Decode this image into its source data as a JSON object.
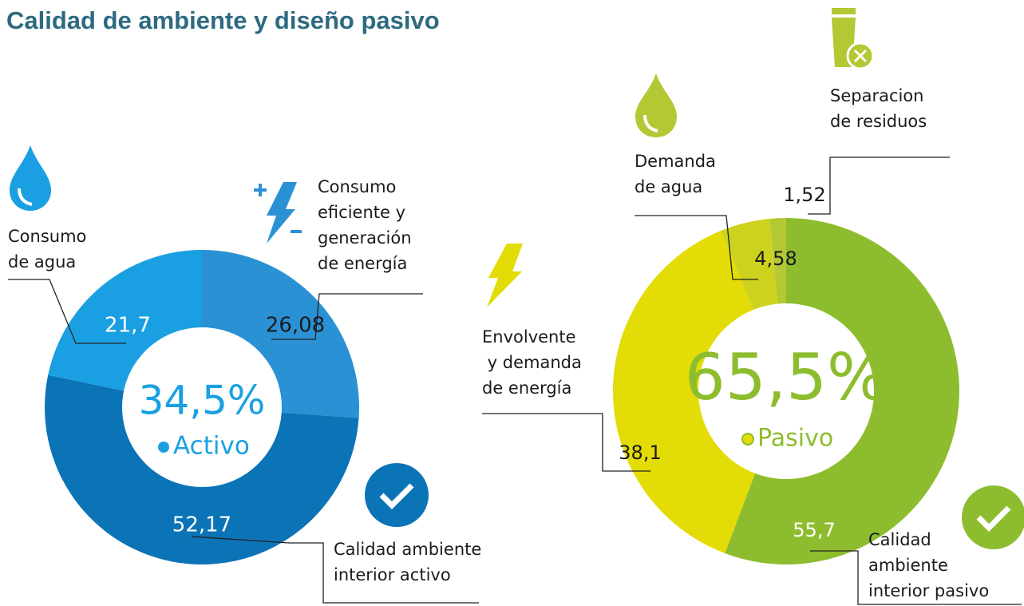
{
  "title": "Calidad de ambiente y diseño pasivo",
  "chart_data": [
    {
      "type": "donut",
      "center_value": "34,5%",
      "center_label": "Activo",
      "categories": [
        "Consumo\neficiente y\ngeneración\nde energía",
        "Calidad ambiente\ninterior activo",
        "Consumo\nde agua"
      ],
      "values": [
        26.08,
        52.17,
        21.7
      ],
      "value_labels": [
        "26,08",
        "52,17",
        "21,7"
      ],
      "colors": [
        "#2b91d5",
        "#0b74b6",
        "#1aa0e2"
      ],
      "center_color": "#1aa0e2"
    },
    {
      "type": "donut",
      "center_value": "65,5%",
      "center_label": "Pasivo",
      "categories": [
        "Calidad\nambiente\ninterior pasivo",
        "Envolvente\n y demanda\nde energía",
        "Demanda\nde agua",
        "Separacion\nde residuos"
      ],
      "values": [
        55.7,
        38.1,
        4.58,
        1.52
      ],
      "value_labels": [
        "55,7",
        "38,1",
        "4,58",
        "1,52"
      ],
      "colors": [
        "#8dbd2e",
        "#e3dc06",
        "#ccd21e",
        "#b3c832"
      ],
      "center_color": "#8dbd2e"
    }
  ]
}
